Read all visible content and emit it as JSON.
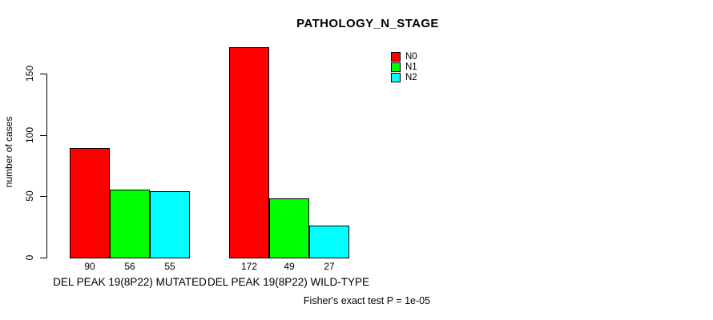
{
  "chart_data": {
    "type": "bar",
    "title": "PATHOLOGY_N_STAGE",
    "ylabel": "number of cases",
    "xlabel": "",
    "ylim": [
      0,
      172
    ],
    "yticks": [
      0,
      50,
      100,
      150
    ],
    "grid": false,
    "legend_position": "top-right-inside",
    "categories": [
      "DEL PEAK 19(8P22) MUTATED",
      "DEL PEAK 19(8P22) WILD-TYPE"
    ],
    "series": [
      {
        "name": "N0",
        "color": "#ff0000",
        "values": [
          90,
          172
        ]
      },
      {
        "name": "N1",
        "color": "#00ff00",
        "values": [
          56,
          49
        ]
      },
      {
        "name": "N2",
        "color": "#00ffff",
        "values": [
          55,
          27
        ]
      }
    ],
    "bar_value_labels": {
      "mutated": [
        90,
        56,
        55
      ],
      "wild_type": [
        172,
        49,
        27
      ]
    },
    "footnote": "Fisher's exact test P = 1e-05"
  }
}
